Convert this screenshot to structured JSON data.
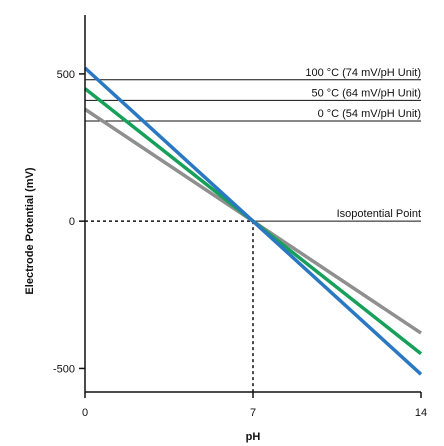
{
  "chart_data": {
    "type": "line",
    "title": "",
    "xlabel": "pH",
    "ylabel": "Electrode Potential (mV)",
    "xlim": [
      0,
      14
    ],
    "ylim": [
      -580,
      700
    ],
    "x_ticks": [
      0,
      7,
      14
    ],
    "x_tick_labels": [
      "0",
      "7",
      "14"
    ],
    "y_ticks": [
      500,
      0,
      -500
    ],
    "y_tick_labels": [
      "500",
      "0",
      "-500"
    ],
    "grid": false,
    "series": [
      {
        "name": "0 °C (54 mV/pH Unit)",
        "color": "#8f8f8f",
        "x": [
          0,
          7,
          14
        ],
        "y": [
          380,
          0,
          -380
        ]
      },
      {
        "name": "50 °C (64 mV/pH Unit)",
        "color": "#17a05a",
        "x": [
          0,
          7,
          14
        ],
        "y": [
          450,
          0,
          -450
        ]
      },
      {
        "name": "100 °C (74 mV/pH Unit)",
        "color": "#2a78c2",
        "x": [
          0,
          7,
          14
        ],
        "y": [
          520,
          0,
          -520
        ]
      }
    ],
    "annotations": [
      {
        "text": "100 °C (74 mV/pH Unit)",
        "y": 480
      },
      {
        "text": "50 °C (64 mV/pH Unit)",
        "y": 410
      },
      {
        "text": "0 °C (54 mV/pH Unit)",
        "y": 340
      },
      {
        "text": "Isopotential Point",
        "y": 0
      }
    ],
    "isopotential_point": {
      "x": 7,
      "y": 0
    }
  }
}
